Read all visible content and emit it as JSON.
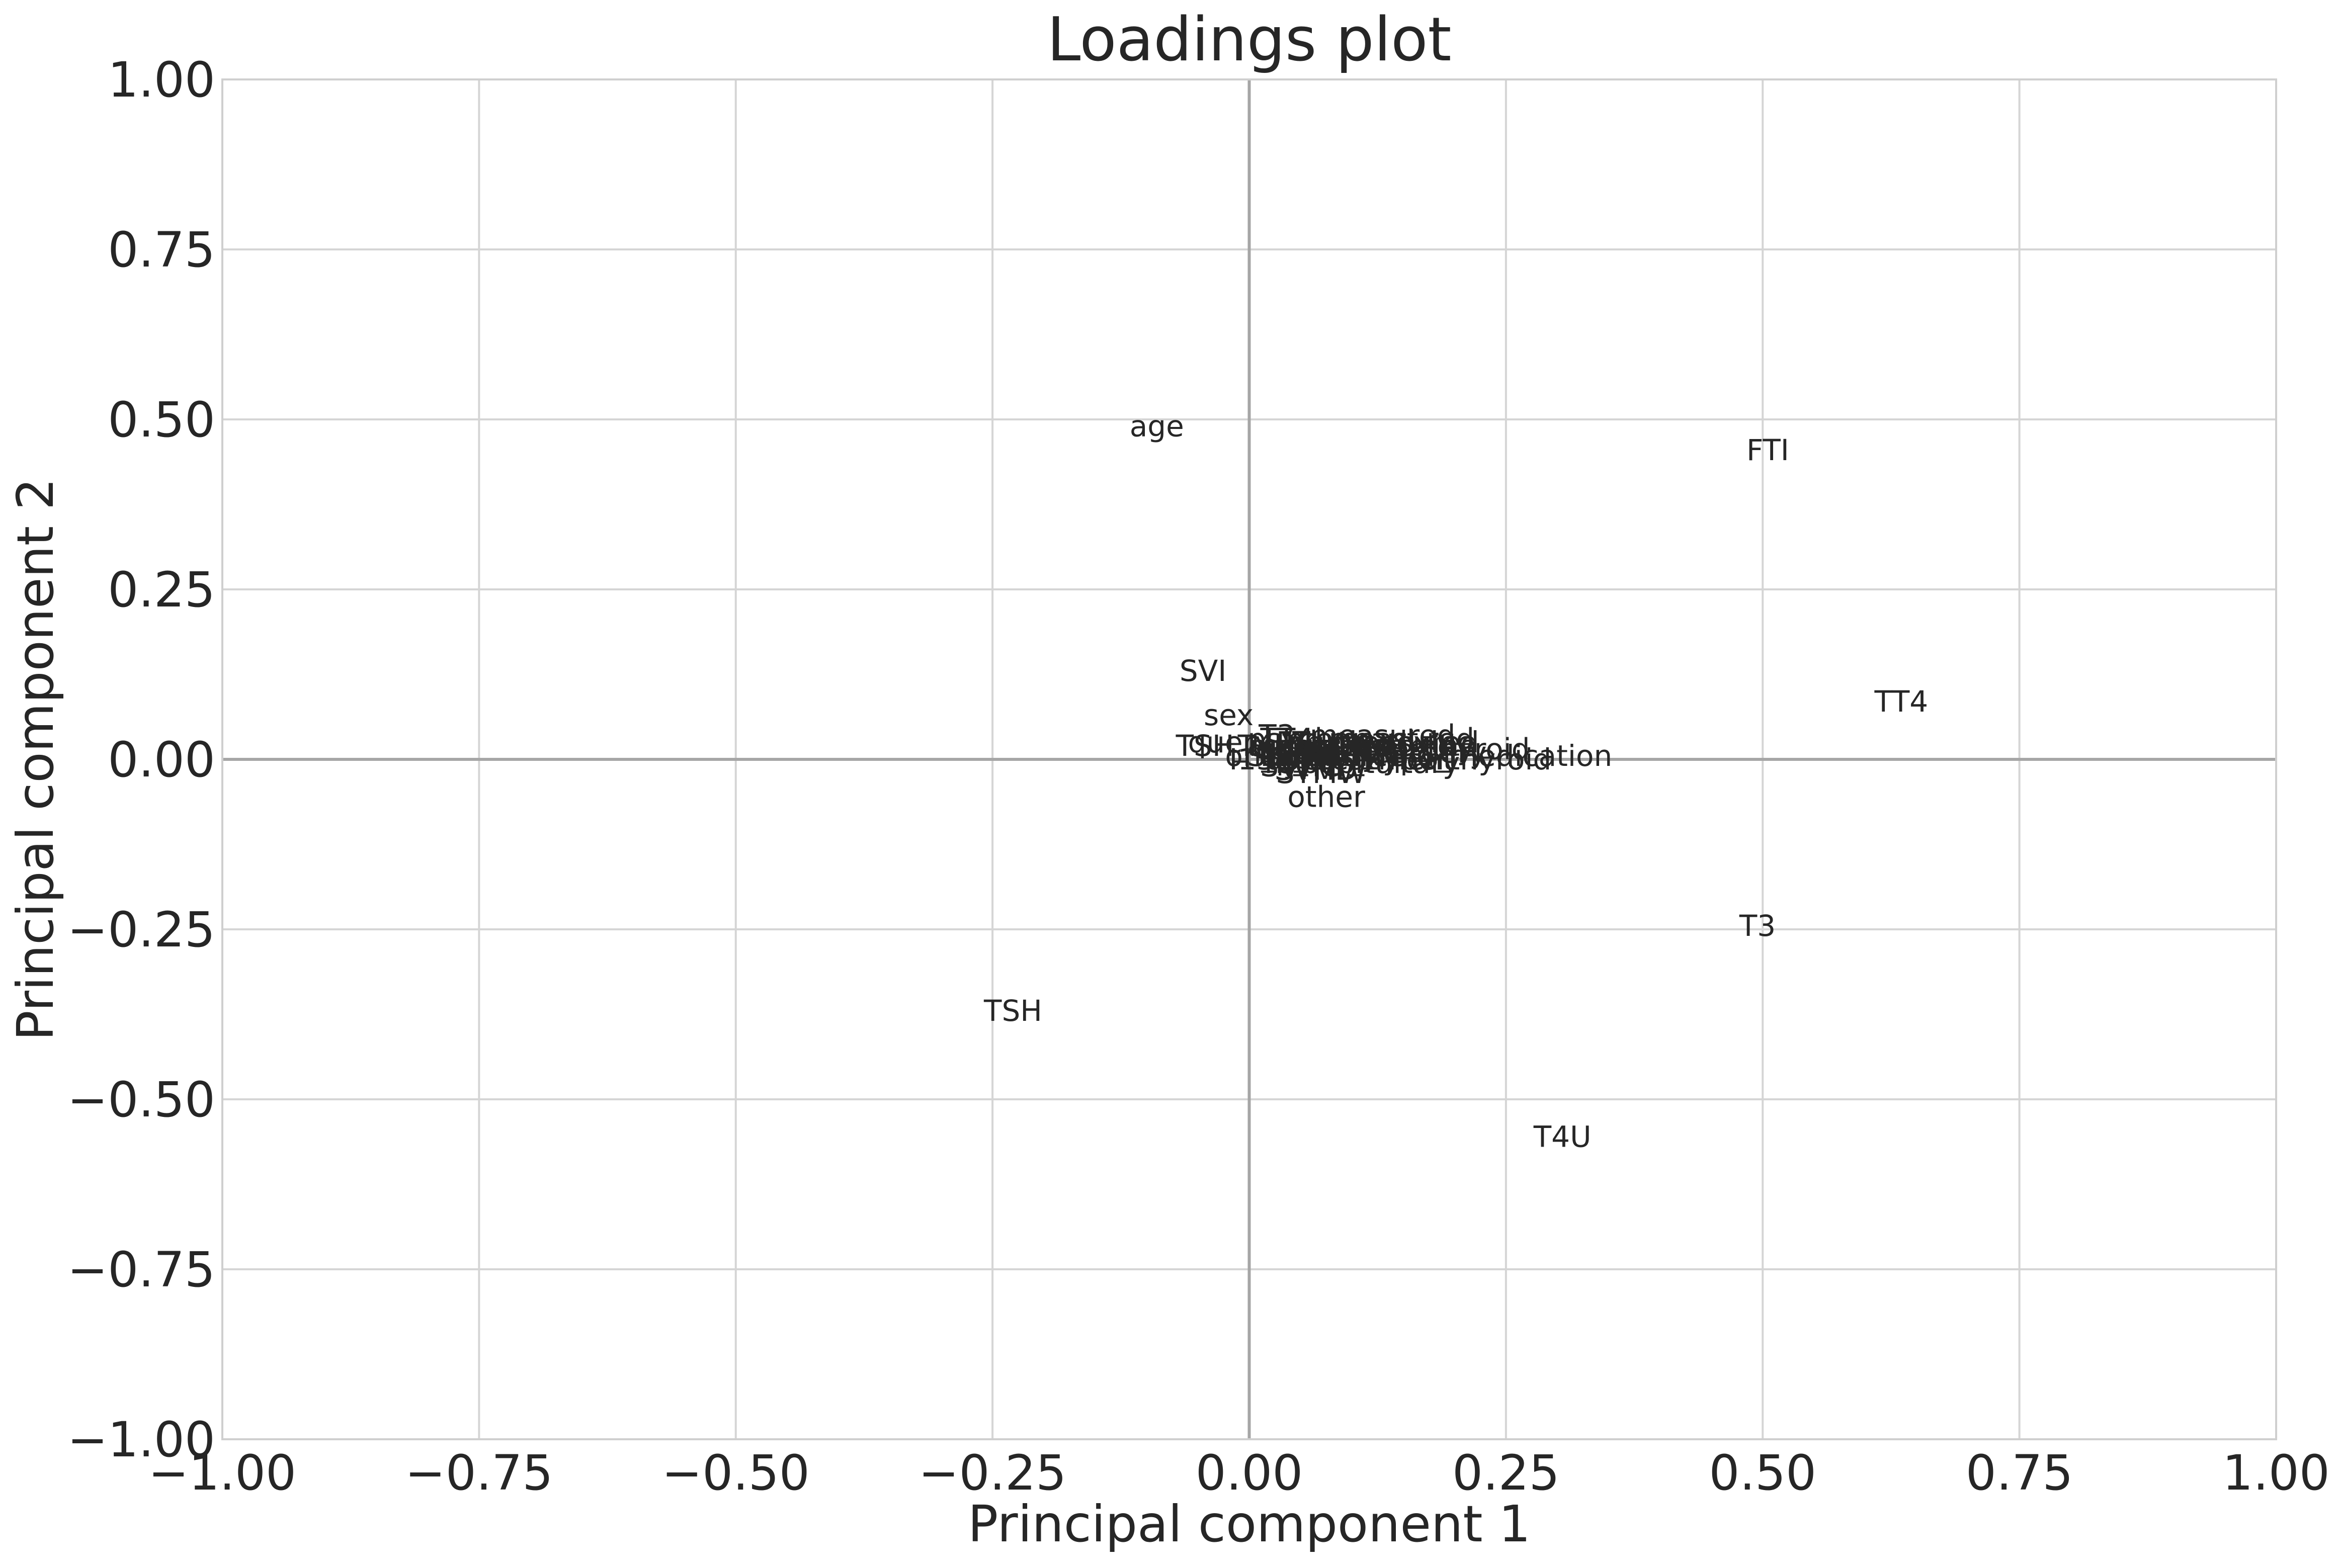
{
  "chart_data": {
    "type": "scatter",
    "title": "Loadings plot",
    "xlabel": "Principal component 1",
    "ylabel": "Principal component 2",
    "xlim": [
      -1.0,
      1.0
    ],
    "ylim": [
      -1.0,
      1.0
    ],
    "x_ticks": [
      -1.0,
      -0.75,
      -0.5,
      -0.25,
      0.0,
      0.25,
      0.5,
      0.75,
      1.0
    ],
    "y_ticks": [
      -1.0,
      -0.75,
      -0.5,
      -0.25,
      0.0,
      0.25,
      0.5,
      0.75,
      1.0
    ],
    "x_tick_labels": [
      "−1.00",
      "−0.75",
      "−0.50",
      "−0.25",
      "0.00",
      "0.25",
      "0.50",
      "0.75",
      "1.00"
    ],
    "y_tick_labels": [
      "−1.00",
      "−0.75",
      "−0.50",
      "−0.25",
      "0.00",
      "0.25",
      "0.50",
      "0.75",
      "1.00"
    ],
    "grid": true,
    "zero_lines": true,
    "colors": {
      "text": "#262626",
      "grid": "#d5d5d5",
      "zero_line": "#a6a6a6",
      "frame": "#cfcfcf"
    },
    "points": [
      {
        "label": "age",
        "x": -0.09,
        "y": 0.49
      },
      {
        "label": "FTI",
        "x": 0.505,
        "y": 0.455
      },
      {
        "label": "TT4",
        "x": 0.635,
        "y": 0.085
      },
      {
        "label": "SVI",
        "x": -0.045,
        "y": 0.13
      },
      {
        "label": "sex",
        "x": -0.02,
        "y": 0.065
      },
      {
        "label": "T3",
        "x": 0.495,
        "y": -0.245
      },
      {
        "label": "TSH",
        "x": -0.23,
        "y": -0.37
      },
      {
        "label": "T4U",
        "x": 0.305,
        "y": -0.555
      },
      {
        "label": "other",
        "x": 0.075,
        "y": -0.055
      },
      {
        "label": "STMW",
        "x": 0.07,
        "y": -0.02
      },
      {
        "label": "on_thyroxine",
        "x": 0.13,
        "y": 0.02
      },
      {
        "label": "query_on_thyroxine",
        "x": 0.08,
        "y": 0.025
      },
      {
        "label": "on_antithyroid_medication",
        "x": 0.165,
        "y": 0.005
      },
      {
        "label": "sick",
        "x": 0.055,
        "y": 0.015
      },
      {
        "label": "pregnant",
        "x": 0.1,
        "y": 0.03
      },
      {
        "label": "thyroid_surgery",
        "x": 0.12,
        "y": 0.01
      },
      {
        "label": "I131_treatment",
        "x": 0.09,
        "y": 0.0
      },
      {
        "label": "query_hypothyroid",
        "x": 0.14,
        "y": 0.015
      },
      {
        "label": "query_hyperthyroid",
        "x": 0.155,
        "y": 0.0
      },
      {
        "label": "lithium",
        "x": 0.06,
        "y": 0.005
      },
      {
        "label": "goitre",
        "x": 0.085,
        "y": 0.01
      },
      {
        "label": "tumor",
        "x": 0.045,
        "y": 0.02
      },
      {
        "label": "hypopituitary",
        "x": 0.11,
        "y": -0.005
      },
      {
        "label": "psych",
        "x": 0.04,
        "y": 0.03
      },
      {
        "label": "T3_measured",
        "x": 0.105,
        "y": 0.035
      },
      {
        "label": "TT4_measured",
        "x": 0.115,
        "y": 0.03
      },
      {
        "label": "T4U_measured",
        "x": 0.095,
        "y": 0.02
      },
      {
        "label": "FTI_measured",
        "x": 0.125,
        "y": 0.025
      },
      {
        "label": "TSH_measured",
        "x": 0.035,
        "y": 0.02
      },
      {
        "label": "SVHC",
        "x": 0.05,
        "y": -0.01
      },
      {
        "label": "SVHD",
        "x": 0.065,
        "y": -0.015
      },
      {
        "label": "SVI_source",
        "x": 0.075,
        "y": 0.005
      }
    ]
  }
}
